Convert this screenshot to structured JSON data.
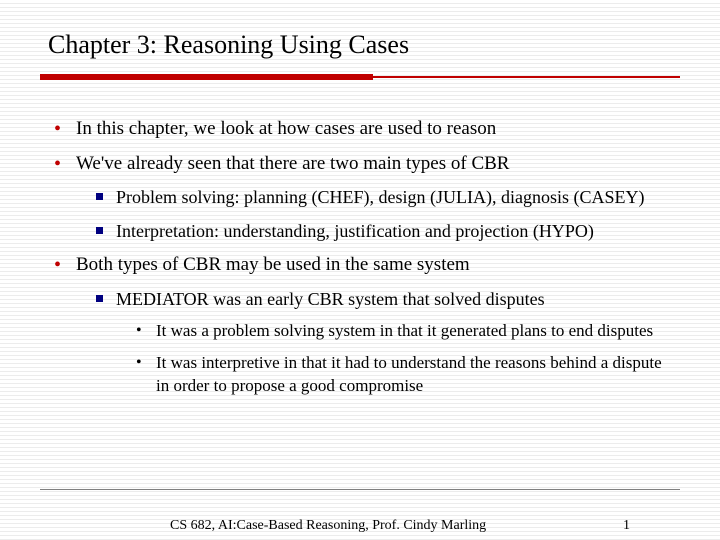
{
  "title": "Chapter 3: Reasoning Using Cases",
  "colors": {
    "accent": "#c00000",
    "bullet_square": "#000080",
    "text": "#000000",
    "footer_line": "#808080",
    "bg_stripe_light": "#ffffff",
    "bg_stripe_dark": "#ececec"
  },
  "divider": {
    "thick_width_pct": 52,
    "thin_start_pct": 52
  },
  "bullets": [
    {
      "text": "In this chapter, we look at how cases are used to reason"
    },
    {
      "text": "We've already seen that there are two main types of CBR",
      "children": [
        {
          "text": "Problem solving: planning (CHEF), design (JULIA), diagnosis (CASEY)"
        },
        {
          "text": "Interpretation: understanding, justification and projection (HYPO)"
        }
      ]
    },
    {
      "text": "Both types of CBR may be used in the same system",
      "children": [
        {
          "text": "MEDIATOR was an early CBR system that solved disputes",
          "children": [
            {
              "text": "It was a problem solving system in that it generated plans to end disputes"
            },
            {
              "text": "It was interpretive in that it had to understand the reasons behind a dispute in order to propose a good compromise"
            }
          ]
        }
      ]
    }
  ],
  "footer": {
    "text": "CS 682, AI:Case-Based Reasoning, Prof. Cindy Marling",
    "page": "1"
  }
}
